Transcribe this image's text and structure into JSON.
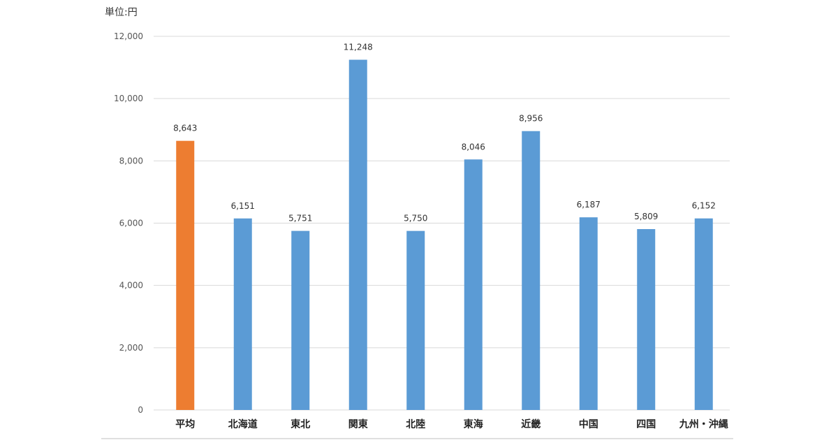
{
  "chart_data": {
    "type": "bar",
    "unit_label": "単位:円",
    "categories": [
      "平均",
      "北海道",
      "東北",
      "関東",
      "北陸",
      "東海",
      "近畿",
      "中国",
      "四国",
      "九州・沖縄"
    ],
    "values": [
      8643,
      6151,
      5751,
      11248,
      5750,
      8046,
      8956,
      6187,
      5809,
      6152
    ],
    "value_labels": [
      "8,643",
      "6,151",
      "5,751",
      "11,248",
      "5,750",
      "8,046",
      "8,956",
      "6,187",
      "5,809",
      "6,152"
    ],
    "ylim": [
      0,
      12000
    ],
    "yticks": [
      0,
      2000,
      4000,
      6000,
      8000,
      10000,
      12000
    ],
    "ytick_labels": [
      "0",
      "2,000",
      "4,000",
      "6,000",
      "8,000",
      "10,000",
      "12,000"
    ],
    "grid": true,
    "colors": {
      "highlight": "#ED7D31",
      "bar": "#5B9BD5",
      "grid": "#D9D9D9"
    },
    "highlight_index": 0
  }
}
